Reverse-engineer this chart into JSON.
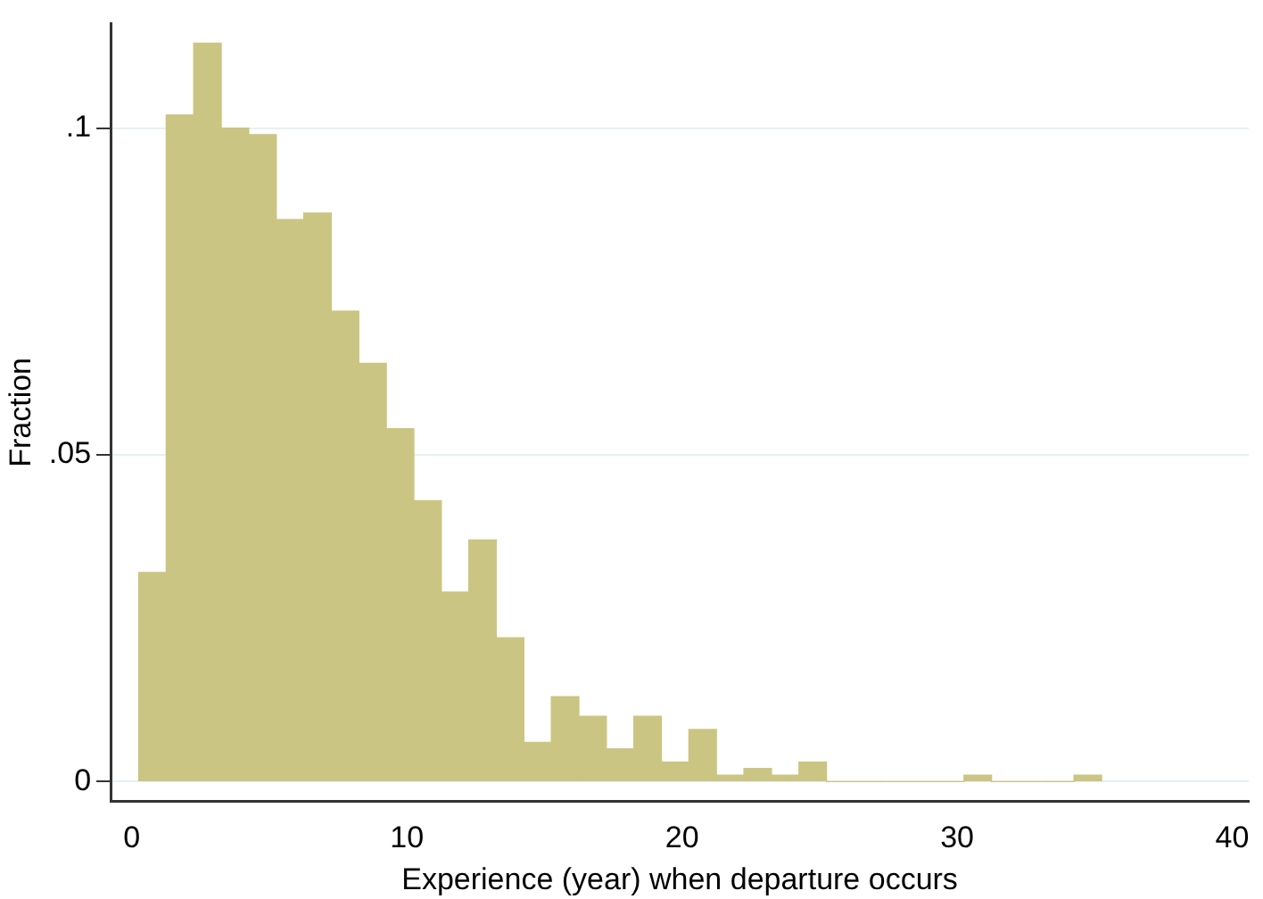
{
  "chart_data": {
    "type": "histogram",
    "xlabel": "Experience (year) when departure occurs",
    "ylabel": "Fraction",
    "color": "#cbc583",
    "bins": [
      0.25,
      1.25,
      2.25,
      3.25,
      4.25,
      5.25,
      6.25,
      7.25,
      8.25,
      9.25,
      10.25,
      11.25,
      12.25,
      13.25,
      14.25,
      15.25,
      16.25,
      17.25,
      18.25,
      19.25,
      20.25,
      21.25,
      22.25,
      23.25,
      24.25,
      25.25,
      26.25,
      27.25,
      28.25,
      29.25,
      30.25,
      31.25,
      32.25,
      33.25,
      34.25,
      35.25
    ],
    "values": [
      0.032,
      0.102,
      0.113,
      0.1,
      0.099,
      0.086,
      0.087,
      0.072,
      0.064,
      0.054,
      0.043,
      0.029,
      0.037,
      0.022,
      0.006,
      0.013,
      0.01,
      0.005,
      0.01,
      0.003,
      0.008,
      0.001,
      0.002,
      0.001,
      0.003,
      0,
      0,
      0,
      0,
      0,
      0.001,
      0,
      0,
      0,
      0.001
    ],
    "xlim": [
      -0.77,
      40.6
    ],
    "xticks": [
      0,
      10,
      20,
      30,
      40
    ],
    "ylim": [
      -0.003,
      0.116
    ],
    "yticks": [
      {
        "value": 0,
        "label": "0"
      },
      {
        "value": 0.05,
        "label": ".05"
      },
      {
        "value": 0.1,
        "label": ".1"
      }
    ],
    "grid": "y",
    "legend": false
  }
}
